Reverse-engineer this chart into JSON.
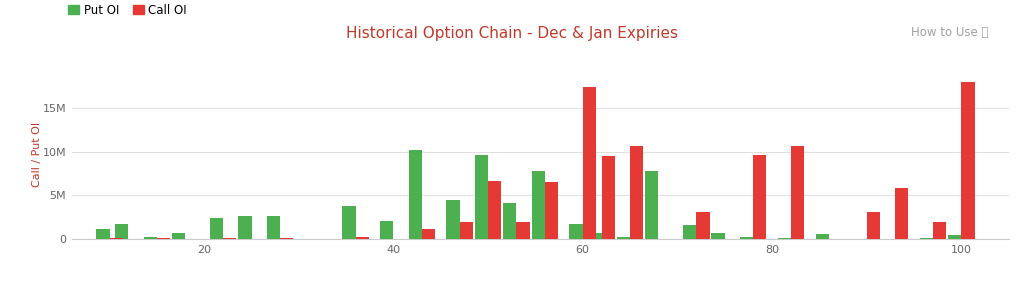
{
  "title": "Historical Option Chain - Dec & Jan Expiries",
  "ylabel": "Call / Put OI",
  "how_to_use": "How to Use ⓘ",
  "put_color": "#4caf50",
  "call_color": "#e53935",
  "background_color": "#ffffff",
  "grid_color": "#e0e0e0",
  "title_color": "#c0392b",
  "axis_label_color": "#c0392b",
  "howto_color": "#a0a0a0",
  "legend_put_label": "Put OI",
  "legend_call_label": "Call OI",
  "xticks": [
    20,
    40,
    60,
    80,
    100
  ],
  "yticks": [
    0,
    5000000,
    10000000,
    15000000
  ],
  "ytick_labels": [
    "0",
    "5M",
    "10M",
    "15M"
  ],
  "ylim": [
    0,
    19500000
  ],
  "strikes": [
    10,
    12,
    15,
    18,
    22,
    25,
    28,
    32,
    36,
    40,
    43,
    47,
    50,
    53,
    56,
    60,
    62,
    65,
    68,
    72,
    75,
    78,
    82,
    86,
    90,
    93,
    97,
    100
  ],
  "put_oi": [
    1200000,
    1700000,
    200000,
    700000,
    2400000,
    2600000,
    2700000,
    0,
    3800000,
    2100000,
    10200000,
    4500000,
    9600000,
    4100000,
    7800000,
    1700000,
    700000,
    200000,
    7800000,
    1600000,
    700000,
    200000,
    100000,
    600000,
    0,
    0,
    100000,
    500000
  ],
  "call_oi": [
    100000,
    0,
    100000,
    0,
    100000,
    0,
    100000,
    0,
    200000,
    0,
    1100000,
    1900000,
    6700000,
    2000000,
    6600000,
    17500000,
    9500000,
    10700000,
    0,
    3100000,
    0,
    9700000,
    10700000,
    0,
    3100000,
    5900000,
    2000000,
    18000000
  ],
  "bar_width": 1.4
}
